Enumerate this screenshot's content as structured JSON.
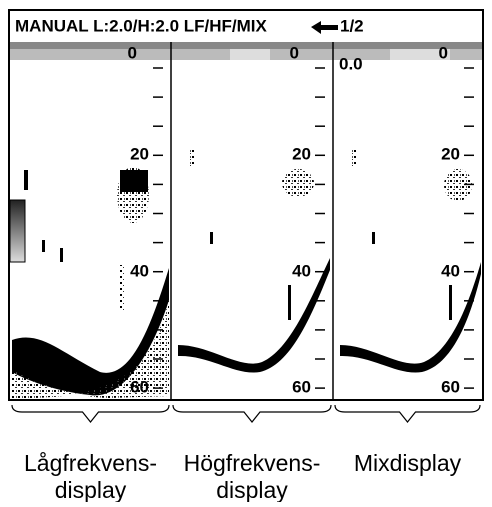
{
  "header": {
    "mode": "MANUAL L:2.0/H:2.0 LF/HF/MIX",
    "page": "1/2"
  },
  "panels": [
    {
      "scale": [
        "0",
        "20",
        "40",
        "60"
      ],
      "caption": [
        "Lågfrekvens-",
        "display"
      ]
    },
    {
      "scale": [
        "0",
        "20",
        "40",
        "60"
      ],
      "caption": [
        "Högfrekvens-",
        "display"
      ]
    },
    {
      "offset": "0.0",
      "scale": [
        "0",
        "20",
        "40",
        "60"
      ],
      "caption": [
        "Mixdisplay"
      ]
    }
  ]
}
